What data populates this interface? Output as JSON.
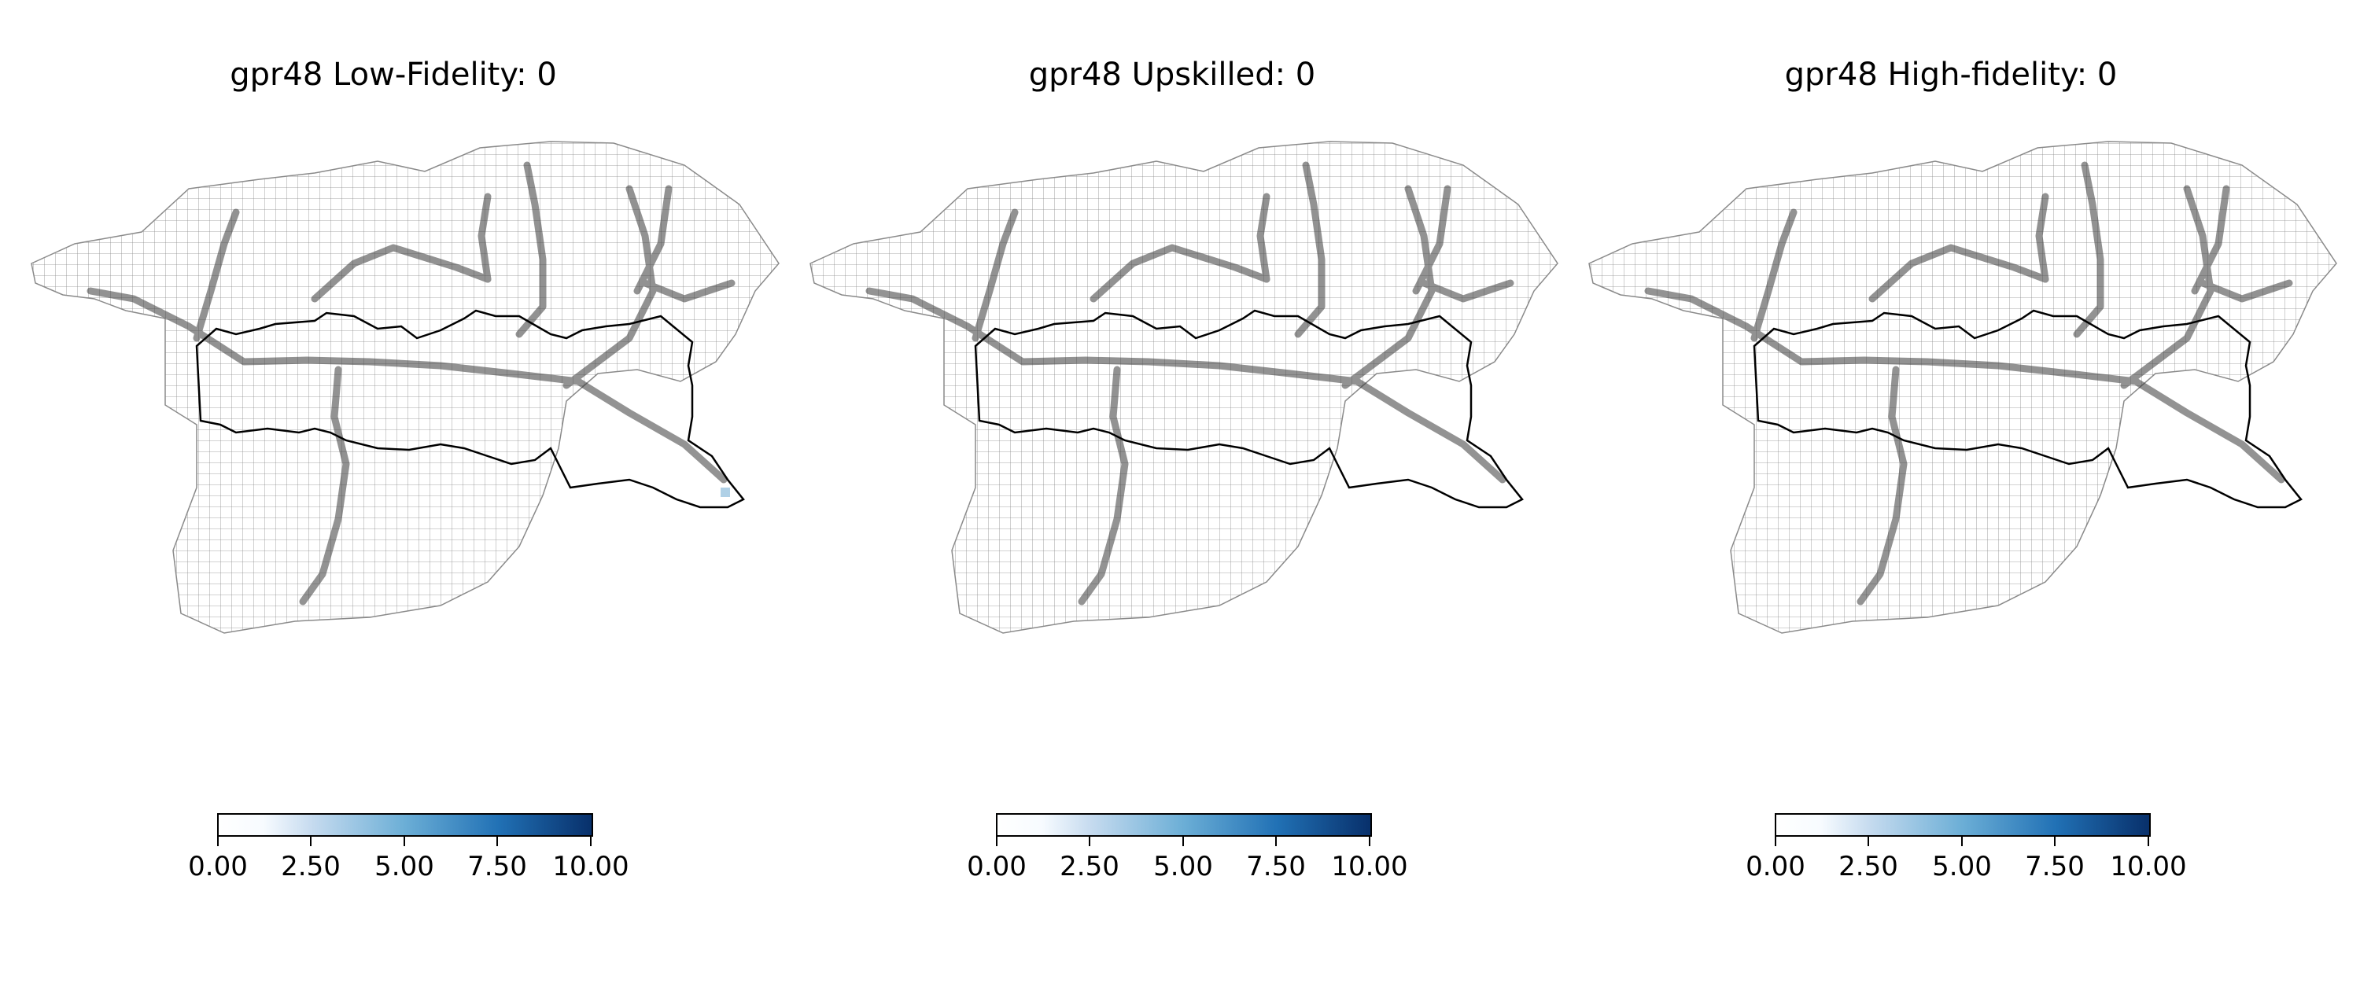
{
  "chart_data": [
    {
      "type": "heatmap",
      "title": "gpr48 Low-Fidelity: 0",
      "colormap": "Blues",
      "colorbar": {
        "vmin": 0,
        "vmax": 10,
        "ticks": [
          "0.00",
          "2.50",
          "5.00",
          "7.50",
          "10.00"
        ]
      },
      "max_value_shown": 1.5
    },
    {
      "type": "heatmap",
      "title": "gpr48 Upskilled: 0",
      "colormap": "Blues",
      "colorbar": {
        "vmin": 0,
        "vmax": 10,
        "ticks": [
          "0.00",
          "2.50",
          "5.00",
          "7.50",
          "10.00"
        ]
      },
      "max_value_shown": 0
    },
    {
      "type": "heatmap",
      "title": "gpr48 High-fidelity: 0",
      "colormap": "Blues",
      "colorbar": {
        "vmin": 0,
        "vmax": 10,
        "ticks": [
          "0.00",
          "2.50",
          "5.00",
          "7.50",
          "10.00"
        ]
      },
      "max_value_shown": 0
    }
  ],
  "colors": {
    "mesh_line": "#8a8a8a",
    "boundary_line": "#000000",
    "cmap_low": "#f7fbff",
    "cmap_high": "#08306b"
  }
}
